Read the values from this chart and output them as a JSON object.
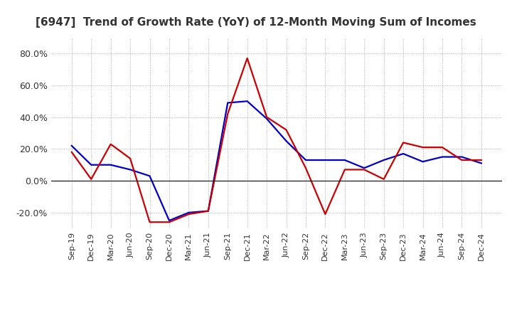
{
  "title": "[6947]  Trend of Growth Rate (YoY) of 12-Month Moving Sum of Incomes",
  "x_labels": [
    "Sep-19",
    "Dec-19",
    "Mar-20",
    "Jun-20",
    "Sep-20",
    "Dec-20",
    "Mar-21",
    "Jun-21",
    "Sep-21",
    "Dec-21",
    "Mar-22",
    "Jun-22",
    "Sep-22",
    "Dec-22",
    "Mar-23",
    "Jun-23",
    "Sep-23",
    "Dec-23",
    "Mar-24",
    "Jun-24",
    "Sep-24",
    "Dec-24"
  ],
  "ordinary_income": [
    22.0,
    10.0,
    10.0,
    7.0,
    3.0,
    -25.0,
    -20.0,
    -19.0,
    49.0,
    50.0,
    39.0,
    25.0,
    13.0,
    13.0,
    13.0,
    8.0,
    13.0,
    17.0,
    12.0,
    15.0,
    15.0,
    11.0
  ],
  "net_income": [
    18.0,
    1.0,
    23.0,
    14.0,
    -26.0,
    -26.0,
    -21.0,
    -19.0,
    42.0,
    77.0,
    40.0,
    32.0,
    8.0,
    -21.0,
    7.0,
    7.0,
    1.0,
    24.0,
    21.0,
    21.0,
    13.0,
    13.0
  ],
  "ordinary_color": "#0000cc",
  "net_color": "#cc0000",
  "background_color": "#ffffff",
  "grid_color": "#aaaaaa",
  "ylim": [
    -30,
    90
  ],
  "yticks": [
    -20.0,
    0.0,
    20.0,
    40.0,
    60.0,
    80.0
  ],
  "title_fontsize": 11,
  "tick_fontsize": 9,
  "legend_fontsize": 9
}
